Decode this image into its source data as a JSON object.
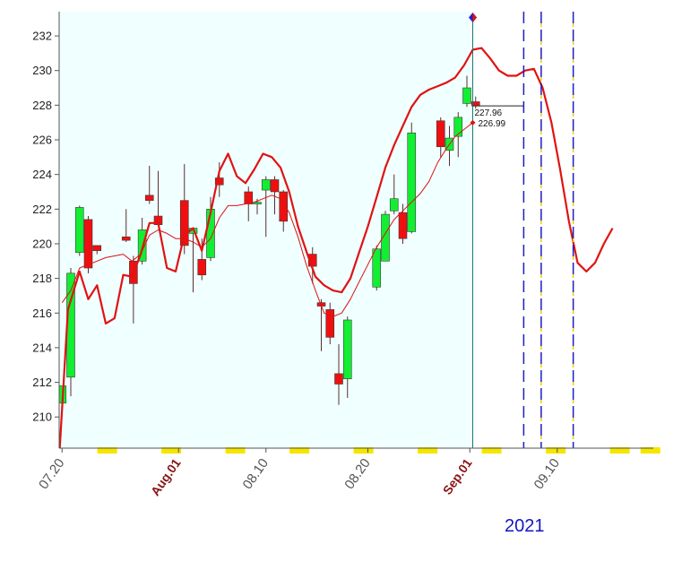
{
  "chart_data": {
    "type": "candlestick",
    "title": "",
    "xlabel": "",
    "ylabel": "",
    "ylim": [
      208.2,
      233.4
    ],
    "y_ticks": [
      210,
      212,
      214,
      216,
      218,
      220,
      222,
      224,
      226,
      228,
      230,
      232
    ],
    "y_tick_labels": [
      "210",
      "212",
      "214",
      "216",
      "218",
      "220",
      "222",
      "224",
      "226",
      "228",
      "230",
      "232"
    ],
    "x_range": [
      -0.2,
      40.6
    ],
    "x_tick_labels": [
      {
        "label": "07.20",
        "idx": 0,
        "style": "normal"
      },
      {
        "label": "Aug.01",
        "idx": 8,
        "style": "month"
      },
      {
        "label": "08.10",
        "idx": 14,
        "style": "normal"
      },
      {
        "label": "08.20",
        "idx": 21,
        "style": "normal"
      },
      {
        "label": "Sep.01",
        "idx": 28,
        "style": "month"
      },
      {
        "label": "09.10",
        "idx": 34,
        "style": "normal"
      }
    ],
    "year_label": "2021",
    "candles": [
      {
        "i": 0.0,
        "o": 210.8,
        "h": 211.8,
        "l": 210.4,
        "c": 211.8
      },
      {
        "i": 0.6,
        "o": 212.3,
        "h": 218.6,
        "l": 211.2,
        "c": 218.3
      },
      {
        "i": 1.2,
        "o": 219.5,
        "h": 222.2,
        "l": 219.3,
        "c": 222.1
      },
      {
        "i": 1.8,
        "o": 221.4,
        "h": 221.6,
        "l": 218.3,
        "c": 218.6
      },
      {
        "i": 2.4,
        "o": 219.9,
        "h": 219.9,
        "l": 219.4,
        "c": 219.6
      },
      {
        "i": 4.4,
        "o": 220.4,
        "h": 222.0,
        "l": 220.1,
        "c": 220.2
      },
      {
        "i": 4.9,
        "o": 219.0,
        "h": 219.3,
        "l": 215.4,
        "c": 217.7
      },
      {
        "i": 5.5,
        "o": 219.0,
        "h": 221.5,
        "l": 218.8,
        "c": 220.8
      },
      {
        "i": 6.0,
        "o": 222.8,
        "h": 224.5,
        "l": 222.3,
        "c": 222.5
      },
      {
        "i": 6.6,
        "o": 221.6,
        "h": 224.2,
        "l": 221.1,
        "c": 221.1
      },
      {
        "i": 8.4,
        "o": 222.5,
        "h": 224.6,
        "l": 219.4,
        "c": 219.9
      },
      {
        "i": 9.0,
        "o": 220.6,
        "h": 220.9,
        "l": 217.2,
        "c": 220.9
      },
      {
        "i": 9.6,
        "o": 219.1,
        "h": 220.3,
        "l": 217.9,
        "c": 218.2
      },
      {
        "i": 10.2,
        "o": 219.2,
        "h": 222.7,
        "l": 219.0,
        "c": 222.0
      },
      {
        "i": 10.8,
        "o": 223.8,
        "h": 224.7,
        "l": 222.7,
        "c": 223.4
      },
      {
        "i": 12.8,
        "o": 223.0,
        "h": 223.3,
        "l": 221.3,
        "c": 222.3
      },
      {
        "i": 13.4,
        "o": 222.4,
        "h": 222.6,
        "l": 221.7,
        "c": 222.4
      },
      {
        "i": 14.0,
        "o": 223.1,
        "h": 223.9,
        "l": 220.4,
        "c": 223.7
      },
      {
        "i": 14.6,
        "o": 223.7,
        "h": 223.9,
        "l": 221.7,
        "c": 223.0
      },
      {
        "i": 15.2,
        "o": 223.0,
        "h": 223.1,
        "l": 220.7,
        "c": 221.3
      },
      {
        "i": 17.2,
        "o": 219.4,
        "h": 219.8,
        "l": 217.7,
        "c": 218.7
      },
      {
        "i": 17.8,
        "o": 216.6,
        "h": 216.8,
        "l": 213.8,
        "c": 216.4
      },
      {
        "i": 18.4,
        "o": 216.2,
        "h": 216.6,
        "l": 214.2,
        "c": 214.6
      },
      {
        "i": 19.0,
        "o": 212.5,
        "h": 214.2,
        "l": 210.7,
        "c": 211.9
      },
      {
        "i": 19.6,
        "o": 212.2,
        "h": 215.8,
        "l": 211.1,
        "c": 215.6
      },
      {
        "i": 21.6,
        "o": 217.5,
        "h": 219.9,
        "l": 217.3,
        "c": 219.7
      },
      {
        "i": 22.2,
        "o": 219.0,
        "h": 221.9,
        "l": 219.0,
        "c": 221.7
      },
      {
        "i": 22.8,
        "o": 221.9,
        "h": 224.0,
        "l": 221.7,
        "c": 222.6
      },
      {
        "i": 23.4,
        "o": 221.8,
        "h": 222.3,
        "l": 220.0,
        "c": 220.3
      },
      {
        "i": 24.0,
        "o": 220.7,
        "h": 227.0,
        "l": 220.6,
        "c": 226.4
      },
      {
        "i": 26.0,
        "o": 227.1,
        "h": 227.3,
        "l": 225.0,
        "c": 225.6
      },
      {
        "i": 26.6,
        "o": 225.4,
        "h": 226.8,
        "l": 224.5,
        "c": 226.1
      },
      {
        "i": 27.2,
        "o": 226.2,
        "h": 227.6,
        "l": 225.0,
        "c": 227.3
      },
      {
        "i": 27.8,
        "o": 228.1,
        "h": 229.7,
        "l": 227.9,
        "c": 229.0
      },
      {
        "i": 28.4,
        "o": 228.2,
        "h": 228.5,
        "l": 227.8,
        "c": 227.96
      }
    ],
    "series": [
      {
        "name": "",
        "color": "#e11212",
        "width": 2.2,
        "points": [
          [
            -0.2,
            207.6
          ],
          [
            0.4,
            216.2
          ],
          [
            1.2,
            218.4
          ],
          [
            1.8,
            216.8
          ],
          [
            2.4,
            217.6
          ],
          [
            3.0,
            215.4
          ],
          [
            3.6,
            215.7
          ],
          [
            4.2,
            218.2
          ],
          [
            4.8,
            218.1
          ],
          [
            5.4,
            219.4
          ],
          [
            6.0,
            221.2
          ],
          [
            6.6,
            221.2
          ],
          [
            7.2,
            218.6
          ],
          [
            7.8,
            218.4
          ],
          [
            8.4,
            220.5
          ],
          [
            9.0,
            220.9
          ],
          [
            9.6,
            219.6
          ],
          [
            10.2,
            221.8
          ],
          [
            10.8,
            224.2
          ],
          [
            11.4,
            225.2
          ],
          [
            12.0,
            223.9
          ],
          [
            12.6,
            223.5
          ],
          [
            13.2,
            224.3
          ],
          [
            13.8,
            225.2
          ],
          [
            14.4,
            225.0
          ],
          [
            15.0,
            224.4
          ],
          [
            15.6,
            223.0
          ],
          [
            16.2,
            221.0
          ],
          [
            16.8,
            219.5
          ],
          [
            17.4,
            218.1
          ],
          [
            18.0,
            217.6
          ],
          [
            18.6,
            217.3
          ],
          [
            19.2,
            217.2
          ],
          [
            19.8,
            218.0
          ],
          [
            20.4,
            219.5
          ],
          [
            21.0,
            221.0
          ],
          [
            21.6,
            222.7
          ],
          [
            22.2,
            224.4
          ],
          [
            22.8,
            225.7
          ],
          [
            23.4,
            226.8
          ],
          [
            24.0,
            227.9
          ],
          [
            24.6,
            228.6
          ],
          [
            25.2,
            228.9
          ],
          [
            25.8,
            229.1
          ],
          [
            26.4,
            229.3
          ],
          [
            27.0,
            229.6
          ],
          [
            27.6,
            230.3
          ],
          [
            28.2,
            231.2
          ],
          [
            28.8,
            231.3
          ],
          [
            29.4,
            230.7
          ],
          [
            30.0,
            230.0
          ],
          [
            30.6,
            229.7
          ],
          [
            31.2,
            229.7
          ],
          [
            31.8,
            230.0
          ],
          [
            32.4,
            230.1
          ],
          [
            33.0,
            229.0
          ],
          [
            33.6,
            227.0
          ],
          [
            34.2,
            224.3
          ],
          [
            34.8,
            221.3
          ],
          [
            35.4,
            218.9
          ],
          [
            36.0,
            218.4
          ],
          [
            36.6,
            218.9
          ],
          [
            37.2,
            220.0
          ],
          [
            37.8,
            220.9
          ]
        ]
      },
      {
        "name": "",
        "color": "#e01010",
        "width": 1.0,
        "points": [
          [
            0.0,
            216.6
          ],
          [
            0.6,
            217.3
          ],
          [
            1.2,
            218.6
          ],
          [
            1.8,
            218.8
          ],
          [
            2.4,
            219.0
          ],
          [
            3.0,
            219.2
          ],
          [
            3.6,
            219.3
          ],
          [
            4.2,
            219.4
          ],
          [
            4.8,
            219.0
          ],
          [
            5.4,
            219.4
          ],
          [
            6.0,
            220.5
          ],
          [
            6.6,
            220.8
          ],
          [
            7.2,
            220.6
          ],
          [
            7.8,
            220.3
          ],
          [
            8.4,
            220.3
          ],
          [
            9.0,
            220.1
          ],
          [
            9.6,
            219.8
          ],
          [
            10.2,
            220.3
          ],
          [
            10.8,
            221.5
          ],
          [
            11.4,
            222.2
          ],
          [
            12.0,
            222.2
          ],
          [
            12.6,
            222.3
          ],
          [
            13.2,
            222.4
          ],
          [
            13.8,
            222.6
          ],
          [
            14.4,
            222.8
          ],
          [
            15.0,
            222.6
          ],
          [
            15.6,
            221.8
          ],
          [
            16.2,
            220.4
          ],
          [
            16.8,
            218.7
          ],
          [
            17.4,
            217.3
          ],
          [
            18.0,
            216.0
          ],
          [
            18.6,
            215.8
          ],
          [
            19.2,
            216.0
          ],
          [
            19.8,
            216.8
          ],
          [
            20.4,
            217.8
          ],
          [
            21.0,
            218.8
          ],
          [
            21.6,
            219.8
          ],
          [
            22.2,
            220.6
          ],
          [
            22.8,
            221.4
          ],
          [
            23.4,
            221.9
          ],
          [
            24.0,
            222.4
          ],
          [
            24.6,
            222.9
          ],
          [
            25.2,
            223.6
          ],
          [
            25.8,
            224.7
          ],
          [
            26.4,
            225.5
          ],
          [
            27.0,
            226.2
          ],
          [
            27.6,
            226.6
          ],
          [
            28.2,
            226.99
          ]
        ]
      }
    ],
    "today_index": 28.2,
    "price_labels": [
      {
        "value": 227.96,
        "label": "227.96"
      },
      {
        "value": 226.99,
        "label": "226.99"
      }
    ],
    "future_markers": [
      {
        "idx": 31.7,
        "color": "#1f1fc0",
        "dash": "13,7"
      },
      {
        "idx": 32.9,
        "color": "#1f1fc0",
        "dash": "13,7",
        "alt_color": "#e8d000"
      },
      {
        "idx": 35.1,
        "color": "#1f1fc0",
        "dash": "13,7",
        "alt_color": "#e8d000"
      }
    ],
    "weekend_bars": [
      3.1,
      7.5,
      11.9,
      16.3,
      20.7,
      25.1,
      29.5,
      33.9,
      38.3,
      40.4
    ],
    "colors": {
      "background": "#f0ffff",
      "up_body": "#12ee32",
      "down_body": "#ee1010",
      "wick": "#5a2f2f",
      "axis": "#555555",
      "tick_text": "#222222",
      "month_label": "#8b1515",
      "date_label": "#555555",
      "year_label": "#1515c8",
      "weekend": "#f5e600",
      "today_line": "#187878"
    }
  }
}
